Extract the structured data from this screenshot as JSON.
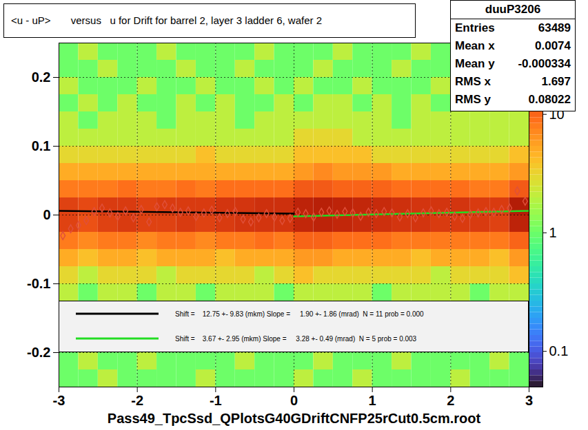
{
  "chart_data": {
    "type": "heatmap",
    "title": "<u - uP>       versus   u for Drift for barrel 2, layer 3 ladder 6, wafer 2",
    "x_label": "Pass49_TpcSsd_QPlotsG40GDriftCNFP25rCut0.5cm.root",
    "xlim": [
      -3,
      3
    ],
    "xticks": [
      -3,
      -2,
      -1,
      0,
      1,
      2,
      3
    ],
    "ylim": [
      -0.25,
      0.25
    ],
    "yticks": [
      -0.2,
      -0.1,
      0,
      0.1,
      0.2
    ],
    "grid": true,
    "log": true,
    "heatmap": {
      "x_bins": [
        -3,
        -2.75,
        -2.5,
        -2.25,
        -2,
        -1.75,
        -1.5,
        -1.25,
        -1,
        -0.75,
        -0.5,
        -0.25,
        0,
        0.25,
        0.5,
        0.75,
        1,
        1.25,
        1.5,
        1.75,
        2,
        2.25,
        2.5,
        2.75,
        3
      ],
      "y_bins": [
        -0.25,
        -0.225,
        -0.2,
        -0.175,
        -0.15,
        -0.125,
        -0.1,
        -0.075,
        -0.05,
        -0.025,
        0,
        0.025,
        0.05,
        0.075,
        0.1,
        0.125,
        0.15,
        0.175,
        0.2,
        0.225,
        0.25
      ],
      "zlim": [
        0.05,
        40
      ],
      "zticks": [
        0.1,
        1,
        10
      ],
      "counts": [
        [
          1,
          1,
          2,
          1,
          1,
          1,
          1,
          2,
          1,
          1,
          1,
          1,
          2,
          1,
          1,
          2,
          1,
          1,
          1,
          1,
          2,
          1,
          1,
          1
        ],
        [
          1,
          2,
          1,
          1,
          2,
          1,
          1,
          1,
          1,
          2,
          1,
          1,
          1,
          2,
          1,
          1,
          1,
          2,
          1,
          1,
          1,
          1,
          2,
          1
        ],
        [
          null,
          null,
          null,
          null,
          null,
          null,
          null,
          null,
          null,
          null,
          null,
          null,
          null,
          null,
          null,
          null,
          null,
          null,
          null,
          null,
          null,
          null,
          null,
          null
        ],
        [
          null,
          null,
          null,
          null,
          null,
          null,
          null,
          null,
          null,
          null,
          null,
          null,
          null,
          null,
          null,
          null,
          null,
          null,
          null,
          null,
          null,
          null,
          null,
          null
        ],
        [
          null,
          null,
          null,
          null,
          null,
          null,
          null,
          null,
          null,
          null,
          null,
          null,
          null,
          null,
          null,
          null,
          null,
          null,
          null,
          null,
          null,
          null,
          null,
          null
        ],
        [
          2,
          1,
          2,
          2,
          1,
          2,
          2,
          1,
          2,
          2,
          2,
          1,
          2,
          2,
          2,
          2,
          1,
          2,
          2,
          2,
          2,
          1,
          2,
          2
        ],
        [
          3,
          2,
          3,
          3,
          3,
          2,
          3,
          3,
          3,
          3,
          2,
          3,
          4,
          3,
          3,
          3,
          3,
          3,
          3,
          2,
          3,
          3,
          3,
          4
        ],
        [
          5,
          4,
          5,
          5,
          4,
          5,
          5,
          5,
          4,
          5,
          5,
          5,
          6,
          6,
          5,
          5,
          5,
          5,
          4,
          5,
          5,
          5,
          4,
          6
        ],
        [
          8,
          7,
          8,
          8,
          7,
          8,
          8,
          7,
          8,
          8,
          9,
          8,
          10,
          10,
          9,
          9,
          9,
          8,
          8,
          8,
          8,
          8,
          8,
          10
        ],
        [
          14,
          12,
          14,
          15,
          14,
          14,
          15,
          14,
          15,
          16,
          16,
          16,
          19,
          20,
          19,
          18,
          17,
          16,
          16,
          15,
          15,
          15,
          14,
          20
        ],
        [
          14,
          13,
          15,
          15,
          14,
          15,
          15,
          15,
          16,
          16,
          17,
          17,
          20,
          21,
          20,
          19,
          18,
          17,
          16,
          16,
          16,
          15,
          15,
          22
        ],
        [
          8,
          8,
          8,
          9,
          8,
          8,
          9,
          8,
          9,
          9,
          9,
          9,
          11,
          11,
          10,
          10,
          10,
          9,
          9,
          9,
          9,
          8,
          8,
          11
        ],
        [
          5,
          5,
          5,
          5,
          5,
          5,
          5,
          5,
          5,
          5,
          5,
          5,
          6,
          7,
          6,
          6,
          6,
          5,
          5,
          5,
          5,
          5,
          5,
          6
        ],
        [
          3,
          3,
          3,
          3,
          3,
          3,
          3,
          4,
          3,
          3,
          3,
          3,
          4,
          4,
          4,
          4,
          3,
          3,
          3,
          3,
          3,
          3,
          3,
          4
        ],
        [
          2,
          2,
          2,
          2,
          2,
          2,
          2,
          2,
          2,
          2,
          2,
          2,
          3,
          3,
          3,
          2,
          2,
          2,
          2,
          2,
          2,
          2,
          2,
          2
        ],
        [
          2,
          1,
          2,
          2,
          2,
          1,
          2,
          2,
          2,
          1,
          2,
          2,
          2,
          2,
          2,
          2,
          2,
          1,
          2,
          2,
          2,
          2,
          2,
          2
        ],
        [
          1,
          2,
          1,
          2,
          1,
          1,
          2,
          1,
          2,
          1,
          1,
          2,
          1,
          2,
          2,
          1,
          2,
          1,
          2,
          1,
          null,
          null,
          null,
          null
        ],
        [
          2,
          1,
          1,
          1,
          2,
          1,
          1,
          2,
          1,
          1,
          2,
          1,
          2,
          1,
          1,
          2,
          1,
          1,
          1,
          2,
          null,
          null,
          null,
          null
        ],
        [
          1,
          1,
          2,
          1,
          1,
          1,
          2,
          1,
          1,
          2,
          1,
          1,
          1,
          2,
          1,
          1,
          1,
          2,
          1,
          1,
          null,
          null,
          null,
          null
        ],
        [
          1,
          2,
          1,
          1,
          1,
          2,
          1,
          1,
          1,
          1,
          2,
          1,
          1,
          1,
          2,
          1,
          1,
          1,
          2,
          1,
          null,
          null,
          null,
          null
        ]
      ]
    },
    "profile": {
      "color": "#e0503a",
      "marker": "diamond",
      "x": [
        -2.95,
        -2.85,
        -2.75,
        -2.65,
        -2.55,
        -2.45,
        -2.35,
        -2.25,
        -2.15,
        -2.05,
        -1.95,
        -1.85,
        -1.75,
        -1.65,
        -1.55,
        -1.45,
        -1.35,
        -1.25,
        -1.15,
        -1.05,
        -0.95,
        -0.85,
        -0.75,
        -0.65,
        -0.55,
        -0.45,
        -0.35,
        -0.25,
        -0.15,
        -0.05,
        0.05,
        0.15,
        0.25,
        0.35,
        0.45,
        0.55,
        0.65,
        0.75,
        0.85,
        0.95,
        1.05,
        1.15,
        1.25,
        1.35,
        1.45,
        1.55,
        1.65,
        1.75,
        1.85,
        1.95,
        2.05,
        2.15,
        2.25,
        2.35,
        2.45,
        2.55,
        2.65,
        2.75,
        2.85,
        2.95
      ],
      "values": [
        -0.03,
        -0.02,
        -0.015,
        -0.008,
        0.005,
        0.01,
        0.003,
        -0.002,
        0.006,
        -0.004,
        0.008,
        -0.01,
        0.012,
        0.015,
        0.01,
        0.004,
        0.006,
        -0.002,
        0.003,
        0.007,
        -0.004,
        0.002,
        0.005,
        -0.006,
        -0.01,
        -0.004,
        0.002,
        -0.003,
        -0.008,
        -0.005,
        0.004,
        0.002,
        -0.003,
        0.004,
        0.006,
        0.001,
        0.005,
        0.003,
        -0.002,
        0.004,
        0.002,
        0.005,
        0.003,
        -0.003,
        0.002,
        -0.004,
        0.003,
        0.006,
        0.002,
        0.004,
        -0.002,
        -0.005,
        0.001,
        0.003,
        0.005,
        0.004,
        0.008,
        0.01,
        0.035,
        0.02
      ]
    },
    "series": [
      {
        "name": "Shift =    12.75 +- 9.83 (mkm) Slope =     1.90 +- 1.86 (mrad)  N = 11 prob = 0.000",
        "color": "#000000",
        "type": "line",
        "x": [
          -3,
          0
        ],
        "values": [
          0.006,
          0.002
        ]
      },
      {
        "name": "Shift =    3.67 +- 2.95 (mkm) Slope =     3.28 +- 0.49 (mrad)  N = 5 prob = 0.003",
        "color": "#22dd22",
        "type": "line",
        "x": [
          0,
          3
        ],
        "values": [
          -0.002,
          0.006
        ]
      }
    ],
    "stats": {
      "name": "duuP3206",
      "rows": [
        [
          "Entries",
          63489
        ],
        [
          "Mean x",
          0.0074
        ],
        [
          "Mean y",
          -0.000334
        ],
        [
          "RMS x",
          1.697
        ],
        [
          "RMS y",
          0.08022
        ]
      ]
    }
  }
}
